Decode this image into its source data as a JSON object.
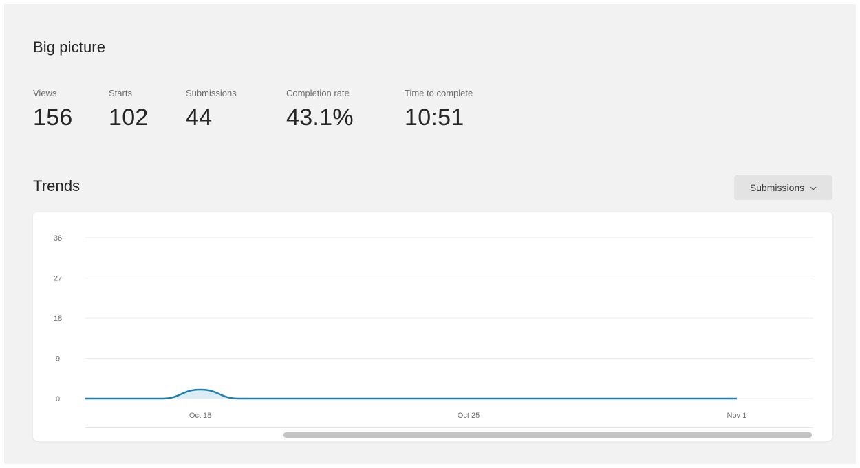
{
  "big_picture": {
    "title": "Big picture",
    "metrics": [
      {
        "label": "Views",
        "value": "156"
      },
      {
        "label": "Starts",
        "value": "102"
      },
      {
        "label": "Submissions",
        "value": "44"
      },
      {
        "label": "Completion rate",
        "value": "43.1%"
      },
      {
        "label": "Time to complete",
        "value": "10:51"
      }
    ]
  },
  "trends": {
    "title": "Trends",
    "dropdown": {
      "selected": "Submissions",
      "icon": "chevron-down-icon"
    }
  },
  "colors": {
    "background": "#f2f2f2",
    "card": "#ffffff",
    "line": "#1f7fae",
    "area": "#dcedf6",
    "grid": "#ebebeb"
  },
  "chart_data": {
    "type": "area",
    "series": [
      {
        "x": [
          "Oct 15",
          "Oct 16",
          "Oct 17",
          "Oct 18",
          "Oct 19",
          "Oct 20",
          "Oct 21",
          "Oct 22",
          "Oct 23",
          "Oct 24",
          "Oct 25",
          "Oct 26",
          "Oct 27",
          "Oct 28",
          "Oct 29",
          "Oct 30",
          "Oct 31",
          "Nov 1"
        ],
        "values": [
          0,
          0,
          0,
          2,
          0,
          0,
          0,
          0,
          0,
          0,
          0,
          0,
          0,
          0,
          0,
          0,
          0,
          0
        ]
      }
    ],
    "x_ticks": [
      "Oct 18",
      "Oct 25",
      "Nov 1"
    ],
    "y_ticks": [
      "0",
      "9",
      "18",
      "27",
      "36"
    ],
    "ylim": [
      0,
      36
    ],
    "grid": true
  }
}
